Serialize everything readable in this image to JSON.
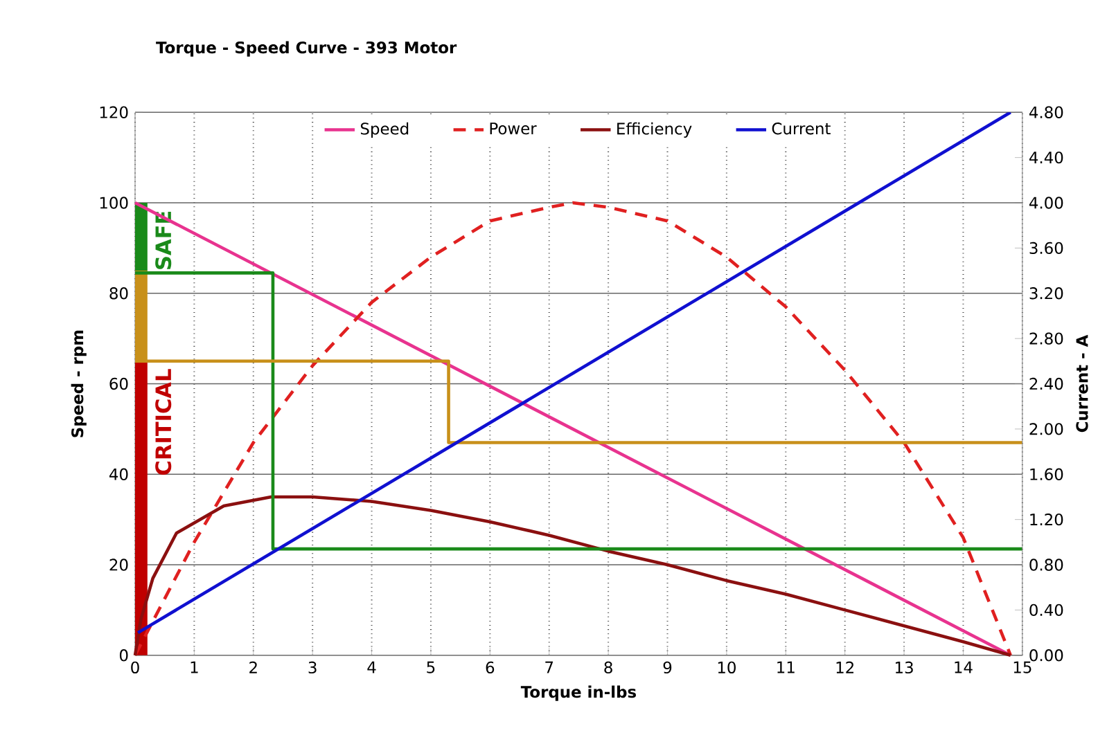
{
  "chart_data": {
    "type": "line",
    "title": "Torque - Speed Curve  - 393 Motor",
    "xlabel": "Torque in-lbs",
    "ylabel": "Speed - rpm",
    "y2label": "Current - A",
    "xlim": [
      0,
      15
    ],
    "xticks": [
      0,
      1,
      2,
      3,
      4,
      5,
      6,
      7,
      8,
      9,
      10,
      11,
      12,
      13,
      14,
      15
    ],
    "ylim": [
      0,
      120
    ],
    "yticks": [
      0,
      20,
      40,
      60,
      80,
      100,
      120
    ],
    "y2lim": [
      0,
      4.8
    ],
    "y2ticks": [
      {
        "value": 0,
        "label": "0.00"
      },
      {
        "value": 0.4,
        "label": "0.40"
      },
      {
        "value": 0.8,
        "label": "0.80"
      },
      {
        "value": 1.2,
        "label": "1.20"
      },
      {
        "value": 1.6,
        "label": "1.60"
      },
      {
        "value": 2.0,
        "label": "2.00"
      },
      {
        "value": 2.4,
        "label": "2.40"
      },
      {
        "value": 2.8,
        "label": "2.80"
      },
      {
        "value": 3.2,
        "label": "3.20"
      },
      {
        "value": 3.6,
        "label": "3.60"
      },
      {
        "value": 4.0,
        "label": "4.00"
      },
      {
        "value": 4.4,
        "label": "4.40"
      },
      {
        "value": 4.8,
        "label": "4.80"
      }
    ],
    "grid": true,
    "legend": "top",
    "marker": "none",
    "series": [
      {
        "name": "Speed",
        "color": "#e8338f",
        "x": [
          0,
          14.8
        ],
        "values": [
          100,
          0
        ]
      },
      {
        "name": "Power",
        "color": "#e02020",
        "line_style": "dashed",
        "x": [
          0,
          1,
          2,
          3,
          4,
          5,
          6,
          7,
          7.4,
          8,
          9,
          10,
          11,
          12,
          13,
          14,
          14.8
        ],
        "values": [
          0,
          25,
          47,
          64,
          78,
          88,
          96,
          99,
          100,
          99,
          96,
          88,
          77,
          63,
          47,
          26,
          0
        ]
      },
      {
        "name": "Efficiency",
        "color": "#8b1010",
        "x": [
          0,
          0.1,
          0.3,
          0.7,
          1.5,
          2.3,
          3,
          4,
          5,
          6,
          7,
          8,
          9,
          10,
          11,
          12,
          13,
          14,
          14.8
        ],
        "values": [
          0,
          8,
          17,
          27,
          33,
          35,
          35,
          34,
          32,
          29.5,
          26.5,
          23,
          20,
          16.5,
          13.5,
          10,
          6.5,
          3,
          0
        ]
      },
      {
        "name": "Current",
        "color": "#1010d0",
        "axis": "y2",
        "x": [
          0.05,
          14.8
        ],
        "values": [
          0.2,
          4.8
        ]
      },
      {
        "color": "#1a8a1a",
        "x": [
          0,
          2.33,
          2.33,
          15
        ],
        "values": [
          84.5,
          84.5,
          23.5,
          23.5
        ]
      },
      {
        "color": "#c8901a",
        "x": [
          0,
          5.3,
          5.3,
          15
        ],
        "values": [
          65,
          65,
          47,
          47
        ]
      },
      {
        "type": "bar",
        "color": "#1a8a1a",
        "x": [
          0
        ],
        "base": [
          85
        ],
        "values": [
          15
        ]
      },
      {
        "type": "bar",
        "color": "#c8901a",
        "x": [
          0
        ],
        "base": [
          65
        ],
        "values": [
          20
        ]
      },
      {
        "type": "bar",
        "color": "#c00000",
        "x": [
          0
        ],
        "base": [
          0
        ],
        "values": [
          65
        ]
      }
    ],
    "annotations": [
      {
        "text": "SAFE",
        "x": 0,
        "y": 100
      },
      {
        "text": "CRITICAL",
        "x": 0,
        "y": 65
      }
    ]
  }
}
